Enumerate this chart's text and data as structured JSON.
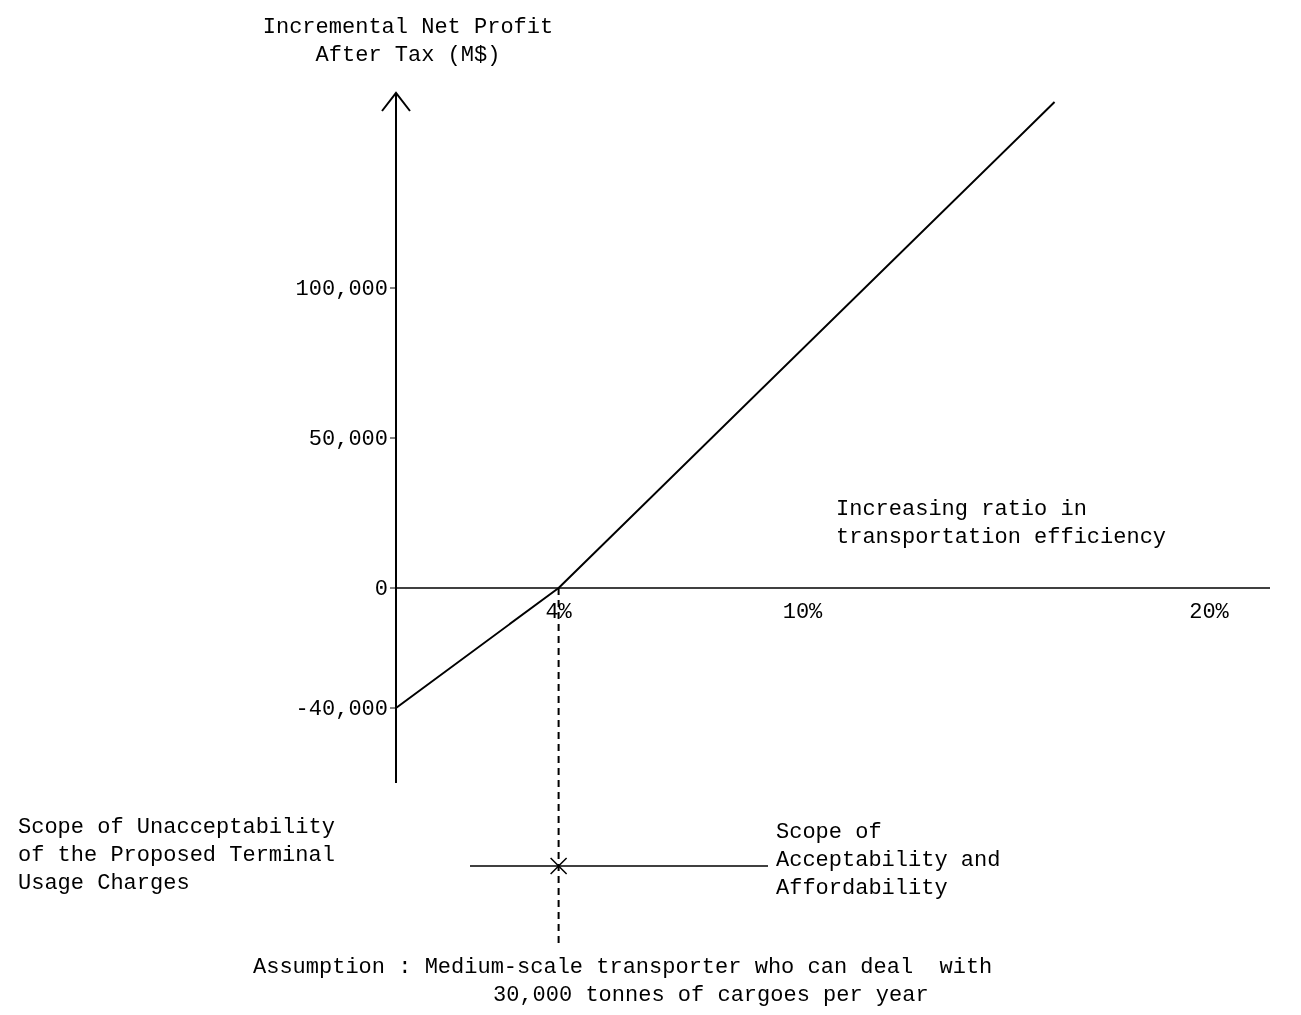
{
  "chart_data": {
    "type": "line",
    "xlabel": "Increasing ratio in\ntransportation efficiency",
    "ylabel": "Incremental Net Profit\nAfter Tax (M$)",
    "xlim": [
      0,
      21.5
    ],
    "ylim": [
      -65000,
      165000
    ],
    "xticks": [
      {
        "value": 4,
        "label": "4%"
      },
      {
        "value": 10,
        "label": "10%"
      },
      {
        "value": 20,
        "label": "20%"
      }
    ],
    "yticks": [
      {
        "value": -40000,
        "label": "-40,000"
      },
      {
        "value": 0,
        "label": "0"
      },
      {
        "value": 50000,
        "label": "50,000"
      },
      {
        "value": 100000,
        "label": "100,000"
      }
    ],
    "series": [
      {
        "color": "#000000",
        "x": [
          0,
          4,
          16.2
        ],
        "values": [
          -40000,
          0,
          162000
        ]
      }
    ],
    "ref_lines": [
      {
        "axis": "x",
        "value": 4,
        "line_style": "dashed",
        "color": "#000000"
      }
    ],
    "grid": false,
    "marker": "none",
    "line_style": "solid",
    "annotations": [
      "Scope of Unacceptability\nof the Proposed Terminal\nUsage Charges",
      "Scope of\nAcceptability and\nAffordability",
      "Assumption : Medium-scale transporter who can deal  with\n30,000 tonnes of cargoes per year"
    ]
  }
}
